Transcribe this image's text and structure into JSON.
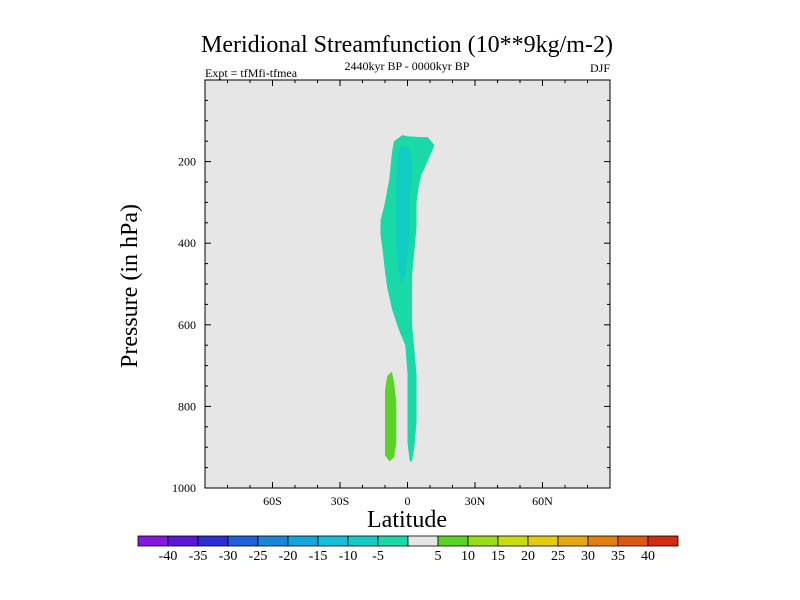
{
  "chart_data": {
    "type": "contour",
    "title": "Meridional Streamfunction (10**9kg/m-2)",
    "left_label": "Expt = tfMfi-tfmea",
    "center_label": "2440kyr BP - 0000kyr BP",
    "right_label": "DJF",
    "xlabel": "Latitude",
    "ylabel": "Pressure (in hPa)",
    "xlim": [
      -90,
      90
    ],
    "ylim": [
      1000,
      0
    ],
    "x_ticks": [
      {
        "value": -60,
        "label": "60S"
      },
      {
        "value": -30,
        "label": "30S"
      },
      {
        "value": 0,
        "label": "0"
      },
      {
        "value": 30,
        "label": "30N"
      },
      {
        "value": 60,
        "label": "60N"
      }
    ],
    "y_ticks": [
      {
        "value": 200,
        "label": "200"
      },
      {
        "value": 400,
        "label": "400"
      },
      {
        "value": 600,
        "label": "600"
      },
      {
        "value": 800,
        "label": "800"
      },
      {
        "value": 1000,
        "label": "1000"
      }
    ],
    "background_color": "#e6e6e6",
    "contour_levels": [
      -40,
      -35,
      -30,
      -25,
      -20,
      -15,
      -10,
      -5,
      5,
      10,
      15,
      20,
      25,
      30,
      35,
      40
    ],
    "colorbar_colors": [
      "#8a17e0",
      "#5b16d8",
      "#2a2ed6",
      "#1f5fd8",
      "#1a86d8",
      "#13a6dc",
      "#12c0d9",
      "#12ccc4",
      "#19d9a6",
      "#e6e6e6",
      "#5ad424",
      "#98dc12",
      "#c8dd10",
      "#e4cc0d",
      "#e6a80c",
      "#e3800d",
      "#de5710",
      "#d62a10"
    ],
    "regions": [
      {
        "name": "negative-cell",
        "value_range": [
          -10,
          -5
        ],
        "color": "#19d9a6",
        "polygon": [
          [
            -2,
            135
          ],
          [
            0,
            138
          ],
          [
            6,
            140
          ],
          [
            9,
            140
          ],
          [
            12,
            160
          ],
          [
            10,
            185
          ],
          [
            8,
            210
          ],
          [
            6,
            235
          ],
          [
            5,
            260
          ],
          [
            4,
            300
          ],
          [
            4,
            360
          ],
          [
            3,
            420
          ],
          [
            2,
            480
          ],
          [
            2,
            540
          ],
          [
            2,
            600
          ],
          [
            3,
            660
          ],
          [
            4,
            720
          ],
          [
            4,
            780
          ],
          [
            4,
            840
          ],
          [
            3,
            900
          ],
          [
            2,
            935
          ],
          [
            1,
            935
          ],
          [
            0,
            890
          ],
          [
            0,
            800
          ],
          [
            0,
            720
          ],
          [
            -1,
            650
          ],
          [
            -4,
            610
          ],
          [
            -7,
            560
          ],
          [
            -9,
            510
          ],
          [
            -10,
            470
          ],
          [
            -11,
            420
          ],
          [
            -12,
            380
          ],
          [
            -12,
            345
          ],
          [
            -10,
            300
          ],
          [
            -8,
            240
          ],
          [
            -7,
            180
          ],
          [
            -6,
            150
          ],
          [
            -3,
            138
          ]
        ]
      },
      {
        "name": "negative-core",
        "value_range": [
          -15,
          -10
        ],
        "color": "#12ccc4",
        "polygon": [
          [
            -3,
            160
          ],
          [
            1,
            170
          ],
          [
            2,
            200
          ],
          [
            2,
            240
          ],
          [
            1,
            280
          ],
          [
            1,
            330
          ],
          [
            1,
            380
          ],
          [
            0,
            430
          ],
          [
            -1,
            480
          ],
          [
            -3,
            500
          ],
          [
            -4,
            460
          ],
          [
            -5,
            400
          ],
          [
            -5,
            340
          ],
          [
            -5,
            280
          ],
          [
            -5,
            230
          ],
          [
            -4,
            185
          ]
        ]
      },
      {
        "name": "positive-cell",
        "value_range": [
          5,
          10
        ],
        "color": "#5ad424",
        "polygon": [
          [
            -7,
            715
          ],
          [
            -6,
            740
          ],
          [
            -5,
            790
          ],
          [
            -5,
            840
          ],
          [
            -5,
            890
          ],
          [
            -6,
            925
          ],
          [
            -8,
            935
          ],
          [
            -10,
            920
          ],
          [
            -10,
            880
          ],
          [
            -10,
            820
          ],
          [
            -10,
            760
          ],
          [
            -9,
            725
          ]
        ]
      }
    ]
  }
}
